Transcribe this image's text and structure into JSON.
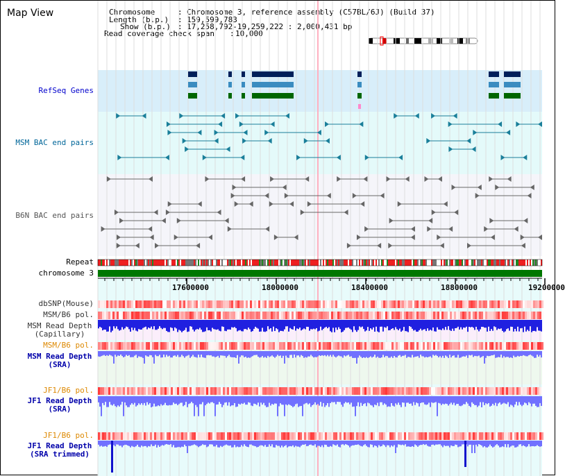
{
  "app": {
    "title": "Map View"
  },
  "info": {
    "chromosome_key": "Chromosome",
    "chromosome_val": "Chromosome 3, reference assembly (C57BL/6J) (Build 37)",
    "length_key": "Length (b.p.)",
    "length_val": "159,599,783",
    "show_key": "Show (b.p.)",
    "show_val": "17,258,792-19,259,222 : 2,000,431 bp",
    "coverage_key": "Read coverage check span",
    "coverage_val": "10,000"
  },
  "tracks": {
    "refseq": {
      "label": "RefSeq Genes",
      "color": "#0000cc"
    },
    "msm_bac": {
      "label": "MSM BAC end pairs",
      "color": "#006699"
    },
    "b6n_bac": {
      "label": "B6N BAC end pairs",
      "color": "#555555"
    },
    "repeat": {
      "label": "Repeat"
    },
    "chromosome": {
      "label": "chromosome 3"
    },
    "dbsnp": {
      "label": "dbSNP(Mouse)"
    },
    "msm_b6_pol_1": {
      "label": "MSM/B6 pol."
    },
    "msm_read_depth_cap": {
      "label1": "MSM Read Depth",
      "label2": "(Capillary)"
    },
    "msm_b6_pol_2": {
      "label": "MSM/B6 pol.",
      "color": "#dd8800"
    },
    "msm_read_depth_sra": {
      "label1": "MSM Read Depth",
      "label2": "(SRA)",
      "color": "#0000aa"
    },
    "jf1_b6_pol_1": {
      "label": "JF1/B6 pol.",
      "color": "#dd8800"
    },
    "jf1_read_depth_sra": {
      "label1": "JF1 Read Depth",
      "label2": "(SRA)",
      "color": "#0000aa"
    },
    "jf1_b6_pol_2": {
      "label": "JF1/B6 pol.",
      "color": "#dd8800"
    },
    "jf1_read_depth_trim": {
      "label1": "JF1 Read Depth",
      "label2": "(SRA trimmed)",
      "color": "#0000aa"
    }
  },
  "axis": {
    "ticks": [
      "17600000",
      "18000000",
      "18400000",
      "18800000",
      "19200000"
    ]
  },
  "colors": {
    "refseq_bg": "#d8eefa",
    "bac_bg": "#e4fafa",
    "b6n_bg": "#f5f5fa",
    "depth_bg": "#eef8ee",
    "sra_bg": "#e6fbfb",
    "gene_dark": "#00205a",
    "gene_mid": "#3a8cc0",
    "gene_green": "#006600",
    "snp_red": "#f04040",
    "depth_blue": "#2020e0",
    "depth_light": "#7070ff"
  }
}
